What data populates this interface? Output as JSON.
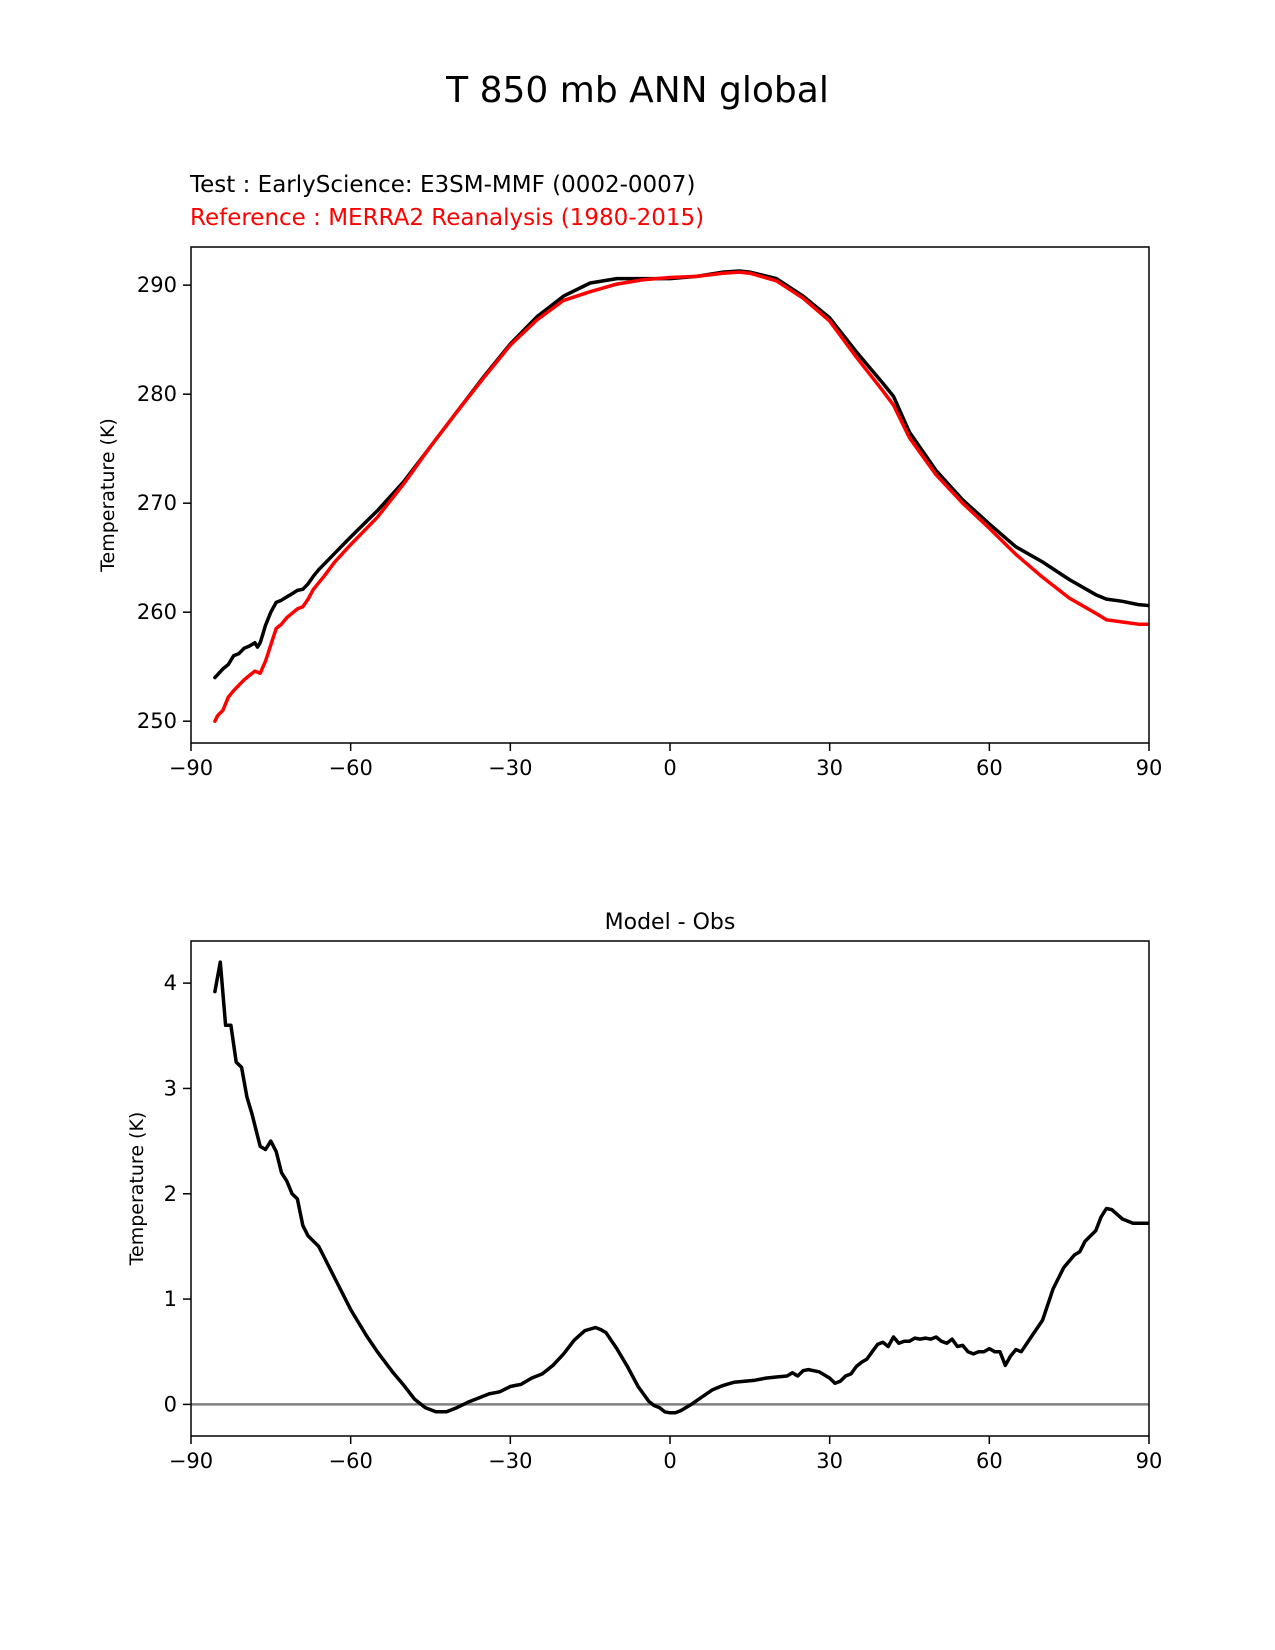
{
  "title": "T 850 mb ANN global",
  "test_label": "Test : EarlyScience: E3SM-MMF (0002-0007)",
  "reference_label": "Reference : MERRA2 Reanalysis (1980-2015)",
  "colors": {
    "test": "#000000",
    "reference": "#ff0000",
    "zero_line": "#808080"
  },
  "chart_data": [
    {
      "type": "line",
      "title": "",
      "xlabel": "",
      "ylabel": "Temperature (K)",
      "xlim": [
        -90,
        90
      ],
      "ylim": [
        248,
        293.5
      ],
      "xticks": [
        -90,
        -60,
        -30,
        0,
        30,
        60,
        90
      ],
      "xtick_labels": [
        "−90",
        "−60",
        "−30",
        "0",
        "30",
        "60",
        "90"
      ],
      "yticks": [
        250,
        260,
        270,
        280,
        290
      ],
      "ytick_labels": [
        "250",
        "260",
        "270",
        "280",
        "290"
      ],
      "series": [
        {
          "name": "Test",
          "color": "#000000",
          "x": [
            -85.5,
            -84,
            -83,
            -82,
            -81,
            -80,
            -79,
            -78,
            -77.5,
            -77,
            -76.5,
            -76,
            -75,
            -74,
            -73,
            -72,
            -71,
            -70,
            -69,
            -68,
            -67,
            -66,
            -65,
            -63,
            -60,
            -55,
            -50,
            -45,
            -40,
            -35,
            -30,
            -25,
            -20,
            -15,
            -10,
            -5,
            0,
            5,
            10,
            13,
            15,
            20,
            25,
            30,
            35,
            40,
            42,
            45,
            50,
            55,
            60,
            65,
            70,
            75,
            80,
            82,
            85,
            88,
            90
          ],
          "y": [
            254,
            254.8,
            255.2,
            256,
            256.2,
            256.7,
            256.9,
            257.2,
            256.8,
            257.2,
            258,
            258.8,
            260,
            260.9,
            261.1,
            261.4,
            261.7,
            262,
            262.1,
            262.6,
            263.3,
            263.9,
            264.4,
            265.4,
            266.9,
            269.3,
            272,
            275.2,
            278.4,
            281.6,
            284.6,
            287.1,
            289,
            290.2,
            290.6,
            290.6,
            290.6,
            290.8,
            291.2,
            291.3,
            291.2,
            290.6,
            289,
            287,
            283.9,
            281,
            279.8,
            276.5,
            273,
            270.3,
            268.1,
            266,
            264.6,
            263,
            261.6,
            261.2,
            261,
            260.7,
            260.6
          ]
        },
        {
          "name": "Reference",
          "color": "#ff0000",
          "x": [
            -85.5,
            -85,
            -84,
            -83,
            -82,
            -81,
            -80,
            -79,
            -78,
            -77,
            -76,
            -75,
            -74,
            -73,
            -72,
            -71,
            -70,
            -69,
            -68,
            -67,
            -65,
            -63,
            -60,
            -55,
            -50,
            -45,
            -40,
            -35,
            -30,
            -25,
            -20,
            -15,
            -10,
            -5,
            0,
            5,
            10,
            13,
            15,
            20,
            25,
            30,
            35,
            40,
            42,
            45,
            50,
            55,
            60,
            65,
            70,
            75,
            80,
            82,
            85,
            88,
            90
          ],
          "y": [
            250,
            250.5,
            251,
            252.2,
            252.8,
            253.3,
            253.8,
            254.2,
            254.6,
            254.4,
            255.5,
            257,
            258.5,
            258.9,
            259.5,
            259.9,
            260.3,
            260.5,
            261.2,
            262.1,
            263.3,
            264.6,
            266.2,
            268.7,
            271.8,
            275.2,
            278.4,
            281.5,
            284.5,
            286.8,
            288.6,
            289.4,
            290.1,
            290.5,
            290.7,
            290.8,
            291.1,
            291.2,
            291.1,
            290.4,
            288.8,
            286.7,
            283.4,
            280.3,
            279,
            276,
            272.6,
            270,
            267.7,
            265.3,
            263.2,
            261.3,
            259.9,
            259.3,
            259.1,
            258.9,
            258.9
          ]
        }
      ]
    },
    {
      "type": "line",
      "title": "Model - Obs",
      "xlabel": "",
      "ylabel": "Temperature (K)",
      "xlim": [
        -90,
        90
      ],
      "ylim": [
        -0.3,
        4.4
      ],
      "xticks": [
        -90,
        -60,
        -30,
        0,
        30,
        60,
        90
      ],
      "xtick_labels": [
        "−90",
        "−60",
        "−30",
        "0",
        "30",
        "60",
        "90"
      ],
      "yticks": [
        0,
        1,
        2,
        3,
        4
      ],
      "ytick_labels": [
        "0",
        "1",
        "2",
        "3",
        "4"
      ],
      "reference_line": 0,
      "series": [
        {
          "name": "Model - Obs",
          "color": "#000000",
          "x": [
            -85.5,
            -84.5,
            -83.5,
            -82.5,
            -81.5,
            -80.5,
            -79.5,
            -78.5,
            -77,
            -76,
            -75,
            -74,
            -73,
            -72,
            -71,
            -70,
            -69,
            -68,
            -67,
            -66,
            -65,
            -63,
            -60,
            -57,
            -55,
            -52,
            -50,
            -48,
            -46,
            -44,
            -42,
            -40,
            -38,
            -36,
            -34,
            -32,
            -30,
            -29,
            -28,
            -26,
            -24,
            -22,
            -20,
            -18,
            -16,
            -14,
            -13,
            -12,
            -10,
            -8,
            -6,
            -4,
            -3,
            -2,
            -1,
            0,
            1,
            2,
            4,
            6,
            8,
            10,
            12,
            14,
            16,
            18,
            20,
            22,
            23,
            24,
            25,
            26,
            27,
            28,
            29,
            30,
            31,
            32,
            33,
            34,
            35,
            36,
            37,
            38,
            39,
            40,
            41,
            42,
            43,
            44,
            45,
            46,
            47,
            48,
            49,
            50,
            51,
            52,
            53,
            54,
            55,
            56,
            57,
            58,
            59,
            60,
            61,
            62,
            63,
            64,
            65,
            66,
            68,
            70,
            72,
            74,
            76,
            77,
            78,
            79,
            80,
            81,
            82,
            83,
            85,
            87,
            90
          ],
          "y": [
            3.92,
            4.2,
            3.6,
            3.6,
            3.25,
            3.2,
            2.92,
            2.75,
            2.45,
            2.42,
            2.5,
            2.4,
            2.2,
            2.12,
            2.0,
            1.95,
            1.7,
            1.6,
            1.55,
            1.5,
            1.4,
            1.2,
            0.9,
            0.65,
            0.5,
            0.3,
            0.18,
            0.05,
            -0.03,
            -0.07,
            -0.07,
            -0.03,
            0.02,
            0.06,
            0.1,
            0.12,
            0.17,
            0.18,
            0.19,
            0.25,
            0.29,
            0.37,
            0.48,
            0.61,
            0.7,
            0.73,
            0.71,
            0.68,
            0.53,
            0.36,
            0.17,
            0.03,
            -0.01,
            -0.03,
            -0.07,
            -0.08,
            -0.08,
            -0.06,
            0.0,
            0.07,
            0.14,
            0.18,
            0.21,
            0.22,
            0.23,
            0.25,
            0.26,
            0.27,
            0.3,
            0.27,
            0.32,
            0.33,
            0.32,
            0.31,
            0.28,
            0.25,
            0.2,
            0.22,
            0.27,
            0.29,
            0.36,
            0.4,
            0.43,
            0.5,
            0.57,
            0.59,
            0.55,
            0.64,
            0.58,
            0.6,
            0.6,
            0.63,
            0.62,
            0.63,
            0.62,
            0.64,
            0.6,
            0.58,
            0.62,
            0.55,
            0.56,
            0.5,
            0.48,
            0.5,
            0.5,
            0.53,
            0.5,
            0.5,
            0.37,
            0.46,
            0.52,
            0.5,
            0.65,
            0.8,
            1.1,
            1.3,
            1.42,
            1.45,
            1.55,
            1.6,
            1.65,
            1.78,
            1.86,
            1.85,
            1.76,
            1.72,
            1.72
          ]
        }
      ]
    }
  ]
}
